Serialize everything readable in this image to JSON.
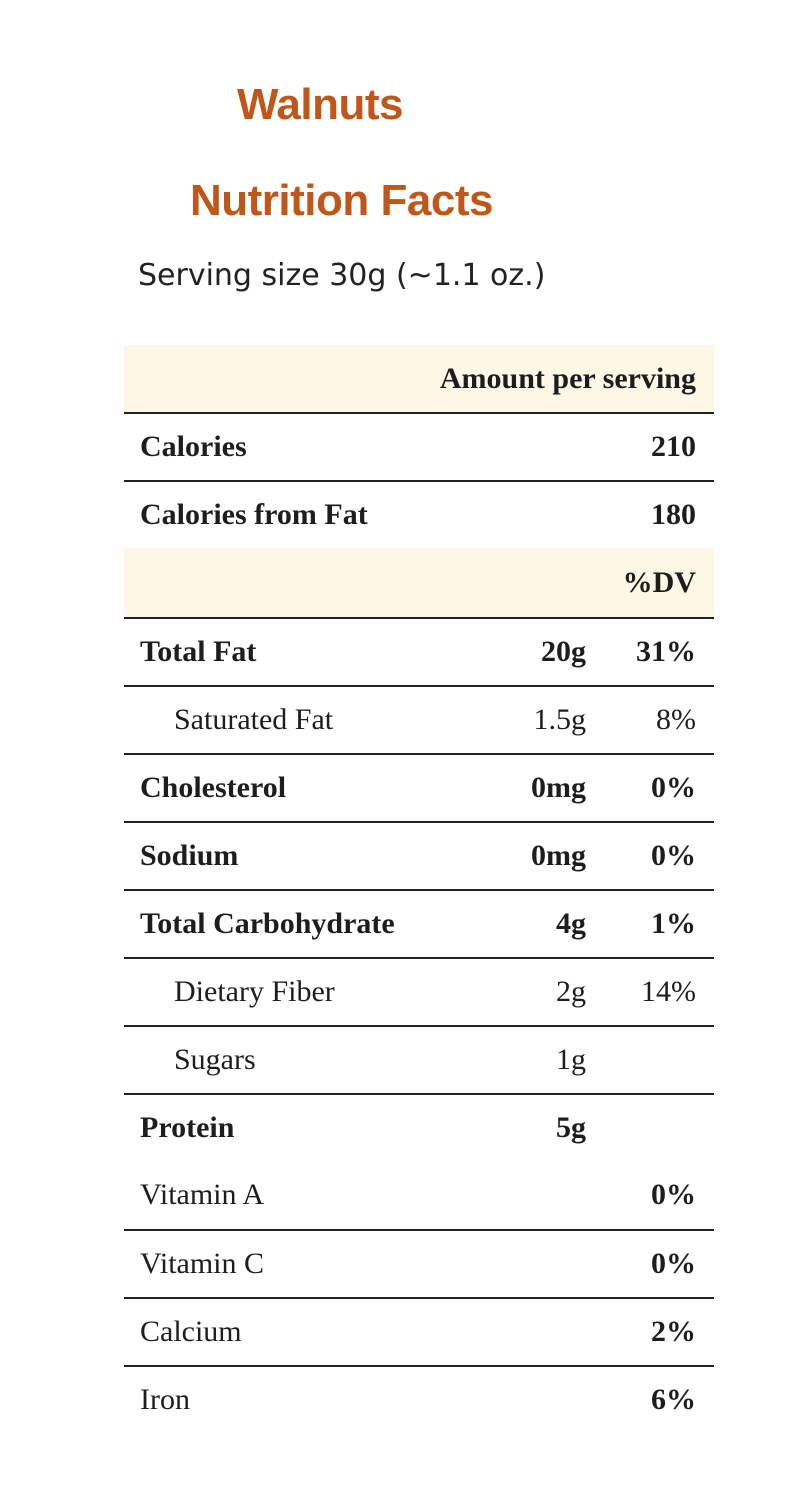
{
  "product": "Walnuts",
  "heading": "Nutrition Facts",
  "serving_size": "Serving size 30g (~1.1 oz.)",
  "colors": {
    "title": "#c0571a",
    "shade": "#fdf7e6",
    "rule": "#222222"
  },
  "table": {
    "amount_header": "Amount per serving",
    "calories": {
      "label": "Calories",
      "value": "210"
    },
    "calories_fat": {
      "label": "Calories from Fat",
      "value": "180"
    },
    "dv_header": "%DV",
    "nutrients": [
      {
        "label": "Total Fat",
        "amount": "20g",
        "dv": "31%"
      },
      {
        "label": "Saturated Fat",
        "amount": "1.5g",
        "dv": "8%"
      },
      {
        "label": "Cholesterol",
        "amount": "0mg",
        "dv": "0%"
      },
      {
        "label": "Sodium",
        "amount": "0mg",
        "dv": "0%"
      },
      {
        "label": "Total Carbohydrate",
        "amount": "4g",
        "dv": "1%"
      },
      {
        "label": "Dietary Fiber",
        "amount": "2g",
        "dv": "14%"
      },
      {
        "label": "Sugars",
        "amount": "1g",
        "dv": ""
      },
      {
        "label": "Protein",
        "amount": "5g",
        "dv": ""
      }
    ],
    "vitamins": [
      {
        "label": "Vitamin A",
        "dv": "0%"
      },
      {
        "label": "Vitamin C",
        "dv": "0%"
      },
      {
        "label": "Calcium",
        "dv": "2%"
      },
      {
        "label": "Iron",
        "dv": "6%"
      }
    ]
  }
}
